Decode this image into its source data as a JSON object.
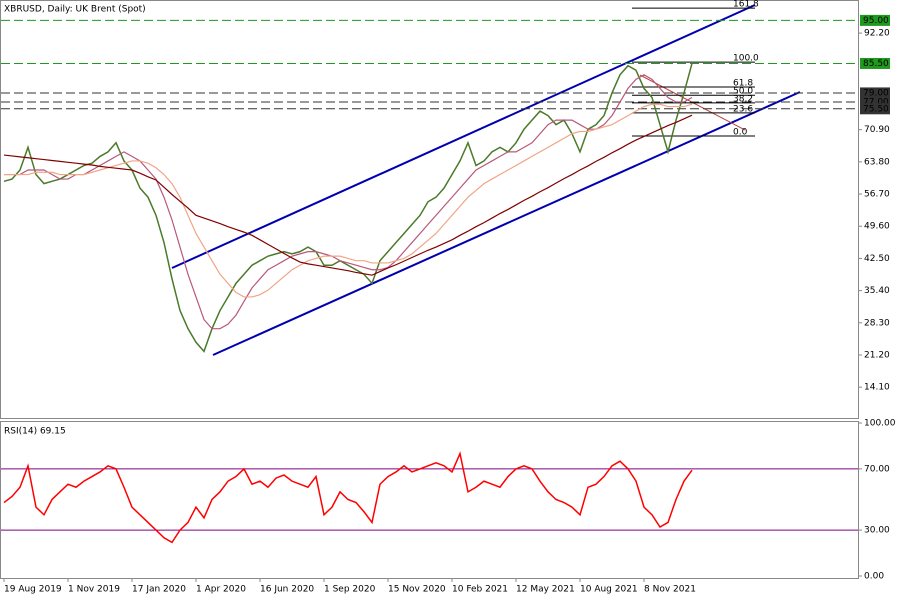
{
  "chart_data": [
    {
      "type": "line",
      "title": "XBRUSD, Daily:  UK Brent (Spot)",
      "ylim": [
        7.3,
        99.5
      ],
      "yticks": [
        {
          "value": 14.1,
          "label": "14.10"
        },
        {
          "value": 21.2,
          "label": "21.20"
        },
        {
          "value": 28.3,
          "label": "28.30"
        },
        {
          "value": 35.4,
          "label": "35.40"
        },
        {
          "value": 42.5,
          "label": "42.50"
        },
        {
          "value": 49.6,
          "label": "49.60"
        },
        {
          "value": 56.7,
          "label": "56.70"
        },
        {
          "value": 63.8,
          "label": "63.80"
        },
        {
          "value": 70.9,
          "label": "70.90"
        },
        {
          "value": 92.2,
          "label": "92.20"
        }
      ],
      "levels": [
        {
          "value": 95,
          "label": "95.00",
          "color": "#1f9a1f",
          "text_color": "#000000"
        },
        {
          "value": 85.5,
          "label": "85.50",
          "color": "#1f9a1f",
          "text_color": "#000000"
        },
        {
          "value": 79,
          "label": "79.00",
          "color": "#333333",
          "text_color": "#ffffff"
        },
        {
          "value": 77,
          "label": "77.00",
          "color": "#333333",
          "text_color": "#ffffff"
        },
        {
          "value": 75.5,
          "label": "75.50",
          "color": "#333333",
          "text_color": "#ffffff"
        }
      ],
      "fibonacci": [
        {
          "value": 97.7,
          "label": "161.8"
        },
        {
          "value": 85.8,
          "label": "100.0"
        },
        {
          "value": 80.3,
          "label": "61.8"
        },
        {
          "value": 78.5,
          "label": "50.0"
        },
        {
          "value": 76.8,
          "label": "38.2"
        },
        {
          "value": 74.6,
          "label": "23.6"
        },
        {
          "value": 69.5,
          "label": "0.0"
        }
      ],
      "series": [
        {
          "color": "#4a7a2a",
          "values": [
            59.5,
            60,
            62,
            67,
            61,
            59,
            59.5,
            60,
            61,
            62,
            63,
            63.5,
            65,
            66,
            68,
            64,
            62,
            58,
            56,
            52,
            46,
            38,
            31,
            27,
            24,
            22,
            27,
            31,
            34,
            37,
            39,
            41,
            42,
            43,
            43.5,
            44,
            43.5,
            44,
            45,
            44,
            41,
            41,
            42,
            41,
            40,
            39,
            37,
            42,
            44,
            46,
            48,
            50,
            52,
            55,
            56,
            58,
            61,
            64,
            68,
            63,
            64,
            66,
            67,
            66,
            68,
            71,
            73,
            75,
            74,
            72,
            73,
            70,
            66,
            71,
            72,
            74,
            79,
            83,
            85,
            84,
            80,
            78,
            72,
            66,
            73,
            79,
            85.5
          ]
        },
        {
          "color": "#b8587a",
          "values": [
            61,
            61,
            61,
            62,
            62,
            62,
            61,
            60,
            60,
            61,
            61,
            62,
            63,
            64,
            65,
            66,
            65,
            64,
            62,
            60,
            56,
            51,
            45,
            39,
            34,
            29,
            27,
            27,
            28,
            30,
            33,
            36,
            38,
            40,
            41,
            42,
            43,
            43.5,
            44,
            44,
            43.5,
            43,
            42,
            41.5,
            41,
            40.5,
            40,
            40,
            40.5,
            42,
            44,
            46,
            48,
            50,
            52,
            54,
            56,
            58,
            60,
            62,
            63,
            64,
            65,
            66,
            66,
            67,
            68,
            70,
            72,
            73,
            73,
            73,
            72,
            71,
            71,
            72,
            74,
            77,
            80,
            82,
            83,
            82,
            80,
            78,
            77,
            77,
            78
          ]
        },
        {
          "color": "#f0a585",
          "values": [
            61,
            61,
            61,
            61,
            61.5,
            61.5,
            61.5,
            61,
            61,
            61,
            61,
            61.5,
            62,
            62.5,
            63,
            63.5,
            64,
            64,
            63.5,
            62.5,
            61,
            59,
            56,
            52,
            48,
            45,
            42,
            39,
            37,
            35,
            34,
            34,
            34.5,
            35.5,
            37,
            38.5,
            40,
            41,
            42,
            42.5,
            43,
            43,
            43,
            42.5,
            42,
            42,
            41.5,
            41.5,
            41.5,
            42,
            42.5,
            43.5,
            45,
            46.5,
            48,
            50,
            52,
            54,
            56,
            57.5,
            59,
            60,
            61,
            62,
            63,
            64,
            65,
            66,
            67,
            68,
            69,
            70,
            70.5,
            70.5,
            71,
            71.5,
            72,
            73,
            74,
            75,
            76,
            76.5,
            76.5,
            76,
            76,
            76,
            76.5
          ]
        },
        {
          "color": "#800000",
          "values": [
            65.3,
            65.1,
            64.9,
            64.7,
            64.5,
            64.3,
            64.1,
            63.9,
            63.7,
            63.5,
            63.3,
            63.1,
            62.8,
            62.6,
            62.4,
            62.2,
            62,
            61.3,
            60.5,
            59.8,
            58.2,
            56.6,
            55.1,
            53.6,
            52,
            51.4,
            50.8,
            50.2,
            49.5,
            48.9,
            48.3,
            47.6,
            46.6,
            45.6,
            44.6,
            43.6,
            42.6,
            41.7,
            41.3,
            41,
            40.7,
            40.4,
            40.1,
            39.8,
            39.4,
            39.1,
            38.8,
            39.6,
            40.4,
            41.1,
            41.9,
            42.7,
            43.5,
            44.3,
            45,
            45.8,
            46.6,
            47.6,
            48.5,
            49.5,
            50.4,
            51.4,
            52.4,
            53.3,
            54.3,
            55.3,
            56.2,
            57.2,
            58.1,
            59.1,
            60.1,
            61,
            62,
            62.9,
            63.9,
            64.8,
            65.8,
            66.7,
            67.7,
            68.6,
            69.4,
            70.2,
            71,
            71.8,
            72.5,
            73.3,
            74.1
          ]
        }
      ]
    },
    {
      "type": "line",
      "title": "RSI(14) 69.15",
      "ylim": [
        -1.3,
        101.3
      ],
      "yticks": [
        {
          "value": 0,
          "label": "0.00"
        },
        {
          "value": 30,
          "label": "30.00"
        },
        {
          "value": 70,
          "label": "70.00"
        },
        {
          "value": 100,
          "label": "100.00"
        }
      ],
      "levels": [
        {
          "value": 70,
          "color": "#800080"
        },
        {
          "value": 30,
          "color": "#800080"
        }
      ],
      "xticks": [
        "19 Aug 2019",
        "1 Nov 2019",
        "17 Jan 2020",
        "1 Apr 2020",
        "16 Jun 2020",
        "1 Sep 2020",
        "15 Nov 2020",
        "10 Feb 2021",
        "12 May 2021",
        "10 Aug 2021",
        "8 Nov 2021"
      ],
      "series": [
        {
          "color": "#ff0000",
          "values": [
            48,
            52,
            58,
            72,
            45,
            40,
            50,
            55,
            60,
            58,
            62,
            65,
            68,
            72,
            70,
            58,
            45,
            40,
            35,
            30,
            25,
            22,
            30,
            35,
            45,
            38,
            50,
            55,
            62,
            65,
            70,
            60,
            62,
            58,
            64,
            66,
            62,
            60,
            58,
            65,
            40,
            45,
            55,
            50,
            48,
            42,
            35,
            60,
            65,
            68,
            72,
            68,
            70,
            72,
            74,
            72,
            68,
            80,
            55,
            58,
            62,
            60,
            58,
            65,
            70,
            72,
            70,
            62,
            55,
            50,
            48,
            45,
            40,
            58,
            60,
            65,
            72,
            75,
            70,
            62,
            45,
            40,
            32,
            35,
            50,
            62,
            69.15
          ]
        }
      ]
    }
  ]
}
